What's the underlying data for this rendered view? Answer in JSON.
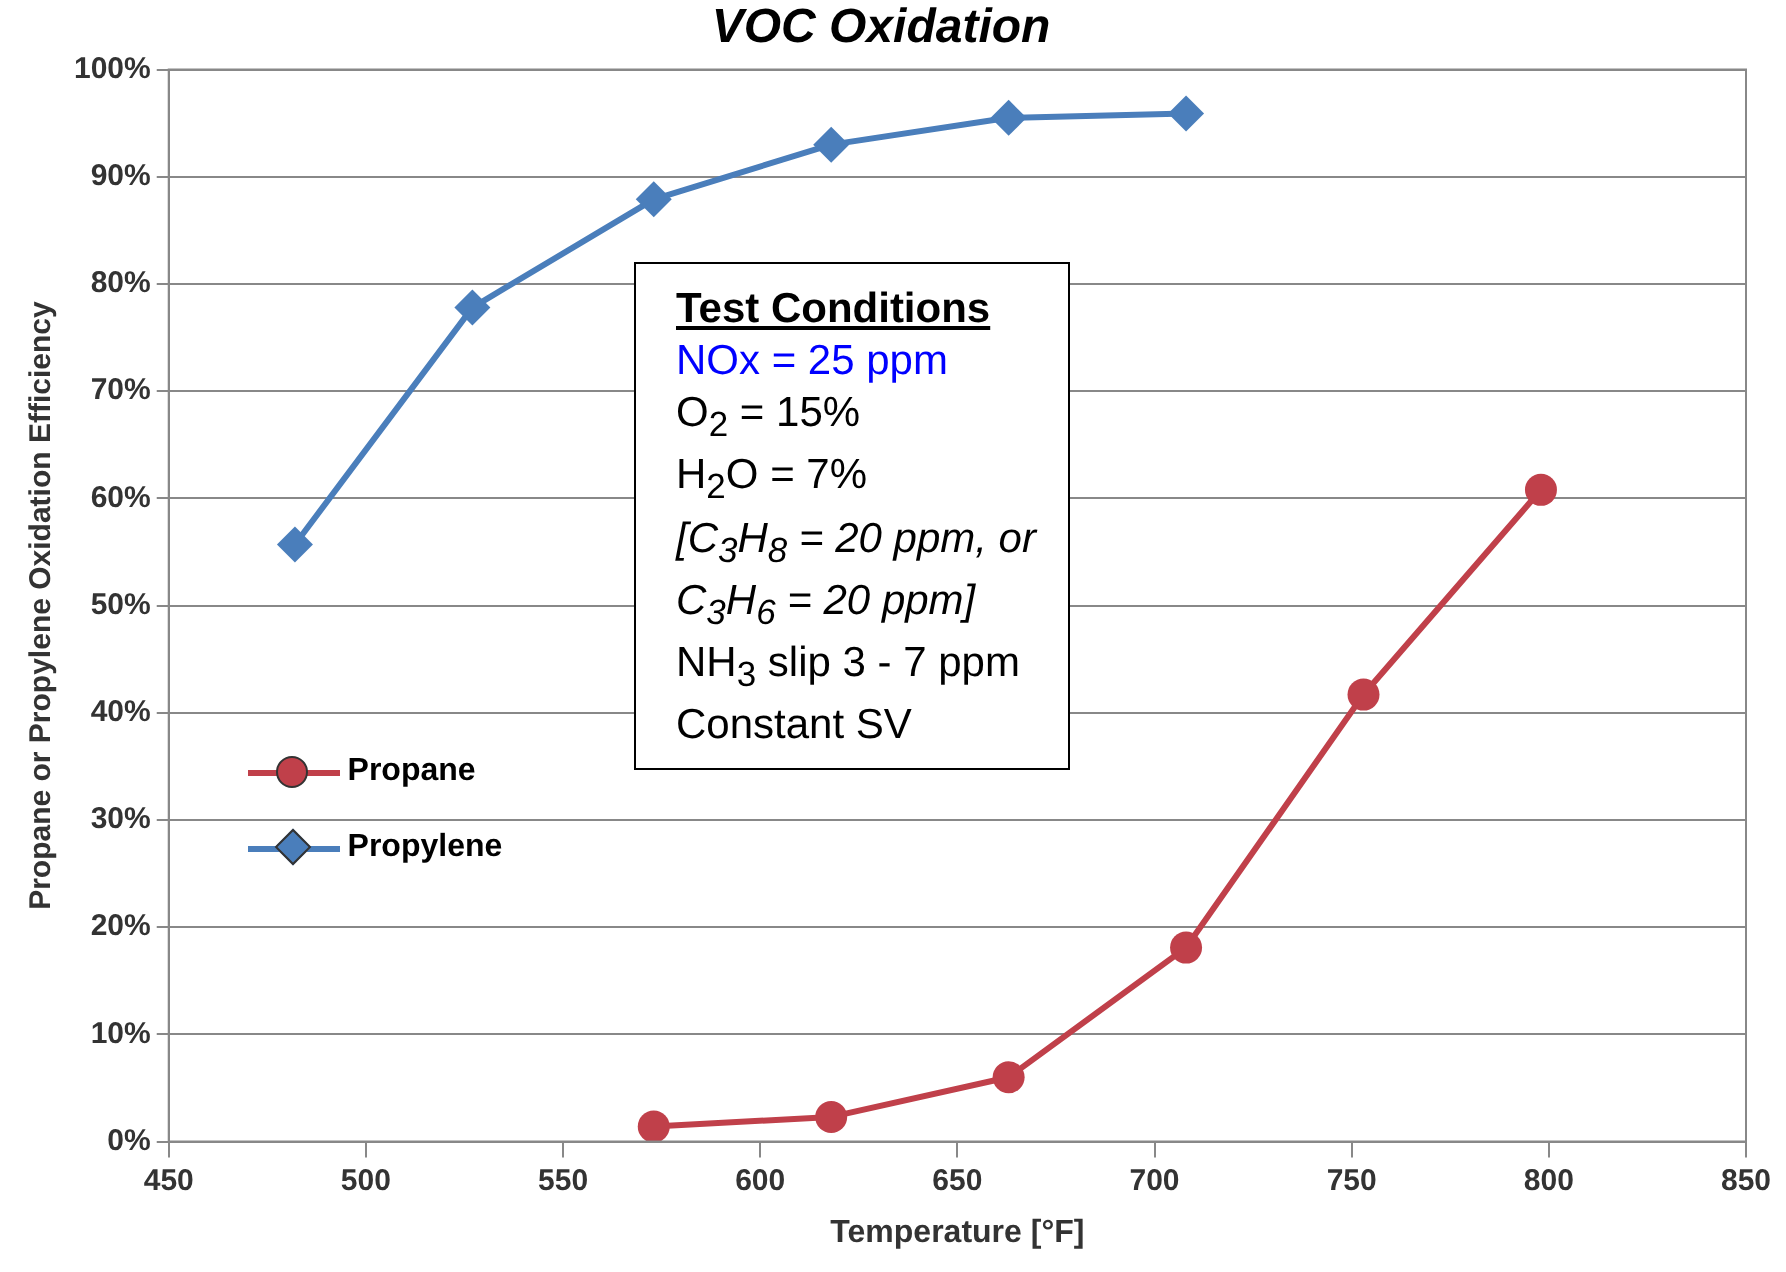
{
  "chart_data": {
    "type": "line",
    "title": "VOC Oxidation",
    "xlabel": "Temperature [°F]",
    "ylabel": "Propane or Propylene Oxidation Efficiency",
    "series": [
      {
        "name": "Propane",
        "color": "#c0404a",
        "x": [
          573,
          618,
          663,
          708,
          753,
          798
        ],
        "values": [
          1.4,
          2.3,
          6.0,
          18.1,
          41.7,
          60.8
        ],
        "marker": "circle"
      },
      {
        "name": "Propylene",
        "color": "#4a7ebb",
        "x": [
          482,
          527,
          573,
          618,
          663,
          708
        ],
        "values": [
          55.7,
          77.8,
          87.9,
          93.0,
          95.5,
          95.9
        ],
        "marker": "diamond"
      }
    ],
    "xlim": [
      450,
      850
    ],
    "xticks": [
      450,
      500,
      550,
      600,
      650,
      700,
      750,
      800,
      850
    ],
    "ylim": [
      0,
      100
    ],
    "yticks": [
      {
        "value": 0,
        "label": "0%"
      },
      {
        "value": 10,
        "label": "10%"
      },
      {
        "value": 20,
        "label": "20%"
      },
      {
        "value": 30,
        "label": "30%"
      },
      {
        "value": 40,
        "label": "40%"
      },
      {
        "value": 50,
        "label": "50%"
      },
      {
        "value": 60,
        "label": "60%"
      },
      {
        "value": 70,
        "label": "70%"
      },
      {
        "value": 80,
        "label": "80%"
      },
      {
        "value": 90,
        "label": "90%"
      },
      {
        "value": 100,
        "label": "100%"
      }
    ],
    "grid": "y",
    "legend": "left",
    "line_style": "solid",
    "annotations": [
      "Test Conditions",
      "NOx = 25 ppm",
      "O$_{2}$ = 15%",
      "H$_{2}$O = 7%",
      "[C$_{3}$H$_{8}$ = 20 ppm, or",
      "C$_{3}$H$_{6}$ = 20 ppm]",
      "NH$_{3}$ slip 3 - 7 ppm",
      "Constant SV"
    ]
  }
}
